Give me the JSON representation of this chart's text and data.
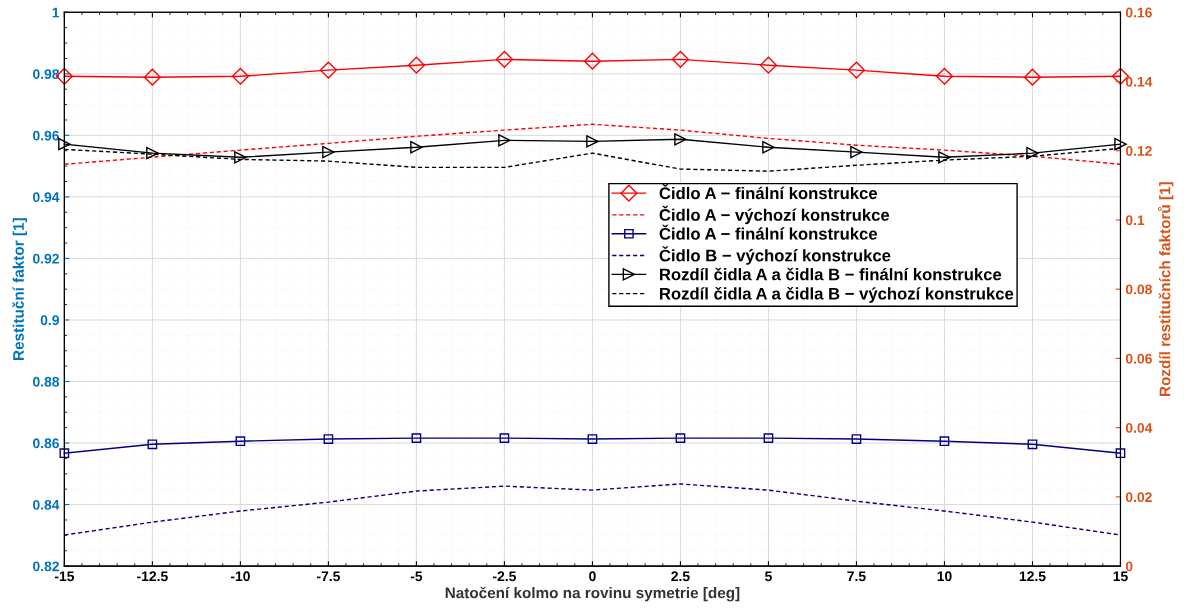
{
  "chart_data": {
    "type": "line",
    "xlabel": "Natočení kolmo na rovinu symetrie [deg]",
    "ylabel": "Restituční faktor [1]",
    "y2label": "Rozdíl restitučních faktorů [1]",
    "x": [
      -15,
      -12.5,
      -10,
      -7.5,
      -5,
      -2.5,
      0,
      2.5,
      5,
      7.5,
      10,
      12.5,
      15
    ],
    "xlim": [
      -15,
      15
    ],
    "xticks": [
      -15,
      -12.5,
      -10,
      -7.5,
      -5,
      -2.5,
      0,
      2.5,
      5,
      7.5,
      10,
      12.5,
      15
    ],
    "ylim": [
      0.82,
      1
    ],
    "yticks": [
      0.82,
      0.84,
      0.86,
      0.88,
      0.9,
      0.92,
      0.94,
      0.96,
      0.98,
      1
    ],
    "y2lim": [
      0,
      0.16
    ],
    "y2ticks": [
      0,
      0.02,
      0.04,
      0.06,
      0.08,
      0.1,
      0.12,
      0.14,
      0.16
    ],
    "grid": true,
    "legend": "right",
    "series": [
      {
        "name": "Čidlo A − finální konstrukce",
        "color": "#ff0000",
        "marker": "diamond",
        "line_style": "solid",
        "values": [
          0.9792,
          0.9789,
          0.9792,
          0.9812,
          0.9828,
          0.9847,
          0.9841,
          0.9847,
          0.9828,
          0.9812,
          0.9792,
          0.9789,
          0.9792
        ]
      },
      {
        "name": "Čidlo A − výchozí konstrukce",
        "color": "#ff0000",
        "marker": "none",
        "line_style": "dashed",
        "values": [
          0.9506,
          0.9529,
          0.9552,
          0.9574,
          0.9597,
          0.9617,
          0.9636,
          0.9617,
          0.959,
          0.9568,
          0.9552,
          0.9532,
          0.9506
        ]
      },
      {
        "name": "Čidlo A − finální konstrukce",
        "color": "#000080",
        "marker": "square",
        "line_style": "solid",
        "values": [
          0.8567,
          0.8596,
          0.8606,
          0.8613,
          0.8616,
          0.8616,
          0.8613,
          0.8616,
          0.8616,
          0.8613,
          0.8606,
          0.8596,
          0.8567
        ]
      },
      {
        "name": "Čidlo B − výchozí konstrukce",
        "color": "#000080",
        "marker": "none",
        "line_style": "dashed",
        "values": [
          0.8301,
          0.8343,
          0.8379,
          0.8408,
          0.8444,
          0.846,
          0.8447,
          0.8467,
          0.8447,
          0.8411,
          0.8379,
          0.8343,
          0.8301
        ]
      },
      {
        "name": "Rozdíl čidla A a čidla B − finální konstrukce",
        "color": "#000000",
        "marker": "triangle",
        "line_style": "solid",
        "axis": "y2",
        "values": [
          0.1219,
          0.1193,
          0.1181,
          0.1196,
          0.121,
          0.123,
          0.1227,
          0.1233,
          0.121,
          0.1196,
          0.1181,
          0.1193,
          0.1219
        ]
      },
      {
        "name": "Rozdíl čidla A a čidla B − výchozí konstrukce",
        "color": "#000000",
        "marker": "none",
        "line_style": "dashed",
        "axis": "y2",
        "values": [
          0.1204,
          0.119,
          0.1175,
          0.117,
          0.1152,
          0.1152,
          0.1193,
          0.1147,
          0.1141,
          0.1158,
          0.1173,
          0.1184,
          0.1207
        ]
      }
    ]
  }
}
